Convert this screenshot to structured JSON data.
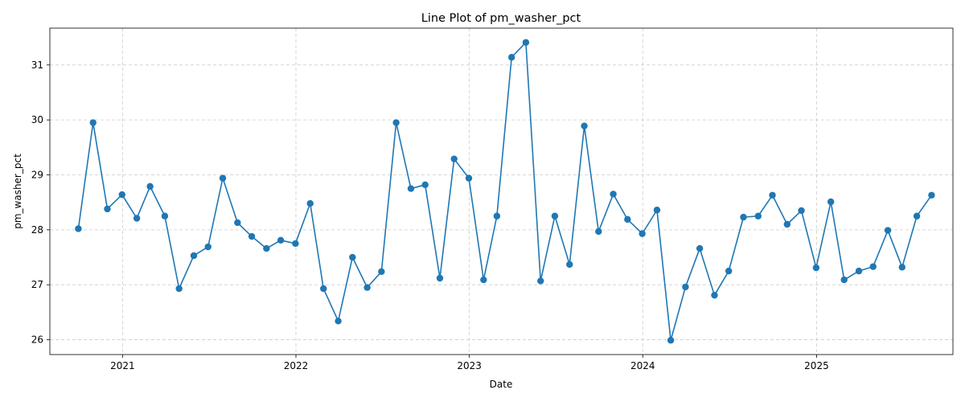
{
  "chart_data": {
    "type": "line",
    "title": "Line Plot of pm_washer_pct",
    "xlabel": "Date",
    "ylabel": "pm_washer_pct",
    "grid": true,
    "legend": "none",
    "xlim": [
      "2020-08-01",
      "2025-10-15"
    ],
    "ylim": [
      25.73,
      31.67
    ],
    "x_ticks": [
      "2021-01-01",
      "2022-01-01",
      "2023-01-01",
      "2024-01-01",
      "2025-01-01"
    ],
    "x_tick_labels": [
      "2021",
      "2022",
      "2023",
      "2024",
      "2025"
    ],
    "y_ticks": [
      26,
      27,
      28,
      29,
      30,
      31
    ],
    "y_tick_labels": [
      "26",
      "27",
      "28",
      "29",
      "30",
      "31"
    ],
    "series": [
      {
        "color": "#1f77b4",
        "marker": "circle",
        "x": [
          "2020-09-30",
          "2020-10-31",
          "2020-11-30",
          "2020-12-31",
          "2021-01-31",
          "2021-02-28",
          "2021-03-31",
          "2021-04-30",
          "2021-05-31",
          "2021-06-30",
          "2021-07-31",
          "2021-08-31",
          "2021-09-30",
          "2021-10-31",
          "2021-11-30",
          "2021-12-31",
          "2022-01-31",
          "2022-02-28",
          "2022-03-31",
          "2022-04-30",
          "2022-05-31",
          "2022-06-30",
          "2022-07-31",
          "2022-08-31",
          "2022-09-30",
          "2022-10-31",
          "2022-11-30",
          "2022-12-31",
          "2023-01-31",
          "2023-02-28",
          "2023-03-31",
          "2023-04-30",
          "2023-05-31",
          "2023-06-30",
          "2023-07-31",
          "2023-08-31",
          "2023-09-30",
          "2023-10-31",
          "2023-11-30",
          "2023-12-31",
          "2024-01-31",
          "2024-02-29",
          "2024-03-31",
          "2024-04-30",
          "2024-05-31",
          "2024-06-30",
          "2024-07-31",
          "2024-08-31",
          "2024-09-30",
          "2024-10-31",
          "2024-11-30",
          "2024-12-31",
          "2025-01-31",
          "2025-02-28",
          "2025-03-31",
          "2025-04-30",
          "2025-05-31",
          "2025-06-30",
          "2025-07-31",
          "2025-08-31"
        ],
        "y": [
          28.02,
          29.95,
          28.38,
          28.64,
          28.21,
          28.79,
          28.25,
          26.93,
          27.53,
          27.69,
          28.94,
          28.13,
          27.88,
          27.66,
          27.81,
          27.75,
          28.48,
          26.93,
          26.34,
          27.5,
          26.95,
          27.24,
          29.95,
          28.75,
          28.82,
          27.12,
          29.29,
          28.94,
          27.09,
          28.25,
          31.14,
          31.41,
          27.07,
          28.25,
          27.37,
          29.89,
          27.97,
          28.65,
          28.19,
          27.93,
          28.36,
          25.99,
          26.96,
          27.66,
          26.81,
          27.25,
          28.23,
          28.25,
          28.63,
          28.1,
          28.35,
          27.31,
          28.51,
          27.09,
          27.25,
          27.33,
          27.99,
          27.32,
          28.25,
          28.63
        ]
      }
    ]
  }
}
